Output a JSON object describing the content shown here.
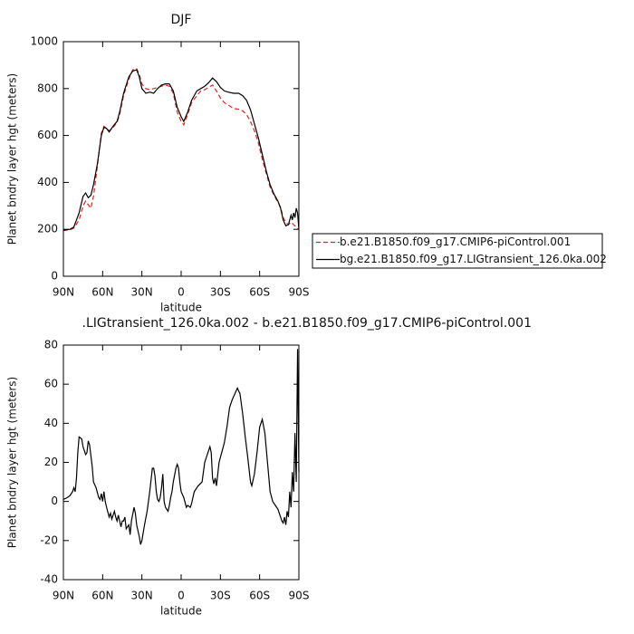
{
  "chart_data": [
    {
      "type": "line",
      "title": "DJF",
      "ylabel": "Planet bndry layer hgt (meters)",
      "xlabel": "latitude",
      "x": [
        90,
        85,
        82,
        78,
        75,
        73,
        71,
        69,
        67,
        64,
        61,
        59,
        57,
        55,
        52,
        49,
        47,
        44,
        40,
        37,
        34,
        32,
        30,
        27,
        24,
        21,
        18,
        15,
        12,
        9,
        6,
        3,
        0,
        -2,
        -5,
        -8,
        -12,
        -15,
        -18,
        -21,
        -24,
        -27,
        -30,
        -33,
        -36,
        -40,
        -44,
        -47,
        -50,
        -53,
        -56,
        -59,
        -62,
        -65,
        -68,
        -71,
        -74,
        -76,
        -78,
        -80,
        -82,
        -84,
        -85,
        -86,
        -87,
        -88,
        -89,
        -90
      ],
      "series": [
        {
          "name": "b.e21.B1850.f09_g17.CMIP6-piControl.001",
          "color": "#e8201c",
          "linestyle": "dashed",
          "values": [
            195,
            198,
            205,
            240,
            300,
            320,
            305,
            290,
            340,
            470,
            610,
            640,
            630,
            620,
            635,
            655,
            690,
            770,
            840,
            880,
            885,
            860,
            820,
            800,
            795,
            800,
            805,
            810,
            815,
            810,
            780,
            700,
            660,
            645,
            690,
            740,
            770,
            790,
            795,
            805,
            815,
            790,
            760,
            740,
            730,
            715,
            712,
            705,
            690,
            660,
            620,
            570,
            500,
            440,
            380,
            345,
            315,
            295,
            250,
            230,
            220,
            230,
            225,
            220,
            215,
            210,
            205,
            200
          ]
        },
        {
          "name": "bg.e21.B1850.f09_g17.LIGtransient_126.0ka.002",
          "color": "#000000",
          "linestyle": "solid",
          "values": [
            197,
            200,
            210,
            270,
            340,
            355,
            335,
            345,
            390,
            480,
            600,
            635,
            630,
            615,
            640,
            660,
            700,
            780,
            850,
            875,
            880,
            850,
            800,
            780,
            785,
            780,
            800,
            815,
            820,
            820,
            790,
            720,
            680,
            660,
            700,
            750,
            790,
            800,
            810,
            825,
            845,
            830,
            805,
            790,
            785,
            780,
            780,
            770,
            750,
            710,
            650,
            590,
            520,
            450,
            390,
            350,
            320,
            290,
            240,
            215,
            220,
            260,
            240,
            270,
            250,
            290,
            270,
            200
          ]
        }
      ],
      "xlim": [
        90,
        -90
      ],
      "xticks": [
        {
          "value": 90,
          "label": "90N"
        },
        {
          "value": 60,
          "label": "60N"
        },
        {
          "value": 30,
          "label": "30N"
        },
        0,
        {
          "value": -30,
          "label": "30S"
        },
        {
          "value": -60,
          "label": "60S"
        },
        {
          "value": -90,
          "label": "90S"
        }
      ],
      "ylim": [
        0,
        1000
      ],
      "yticks": [
        0,
        200,
        400,
        600,
        800,
        1000
      ],
      "legend": "right"
    },
    {
      "type": "line",
      "title": ".LIGtransient_126.0ka.002 - b.e21.B1850.f09_g17.CMIP6-piControl.001",
      "ylabel": "Planet bndry layer hgt (meters)",
      "xlabel": "latitude",
      "x": [
        90,
        87,
        85,
        83,
        82,
        81,
        80,
        79,
        78,
        76,
        75,
        73,
        72,
        71,
        70,
        68,
        67,
        65,
        63,
        62,
        61,
        60,
        59,
        58,
        57,
        55,
        54,
        53,
        51,
        50,
        49,
        48,
        46,
        45,
        44,
        43,
        42,
        40,
        39,
        38,
        36,
        35,
        34,
        32,
        31,
        30,
        28,
        26,
        25,
        24,
        22,
        21,
        20,
        19,
        18,
        17,
        16,
        15,
        14,
        13,
        12,
        10,
        9,
        8,
        7,
        6,
        4,
        3,
        2,
        1,
        0,
        -2,
        -4,
        -5,
        -7,
        -8,
        -10,
        -13,
        -16,
        -18,
        -20,
        -22,
        -23,
        -24,
        -25,
        -26,
        -27,
        -28,
        -29,
        -31,
        -33,
        -35,
        -37,
        -39,
        -41,
        -43,
        -45,
        -47,
        -49,
        -51,
        -53,
        -54,
        -56,
        -58,
        -60,
        -62,
        -64,
        -66,
        -68,
        -70,
        -72,
        -74,
        -76,
        -77,
        -78,
        -79,
        -80,
        -81,
        -82,
        -83,
        -84,
        -85,
        -86,
        -87,
        -88,
        -89,
        -90
      ],
      "values": [
        1,
        2,
        3,
        5,
        7,
        5,
        12,
        25,
        33,
        32,
        28,
        24,
        25,
        31,
        29,
        18,
        10,
        7,
        2,
        1,
        4,
        0,
        5,
        0,
        -3,
        -8,
        -6,
        -9,
        -5,
        -8,
        -10,
        -7,
        -13,
        -10,
        -10,
        -8,
        -14,
        -12,
        -17,
        -10,
        -3,
        -6,
        -12,
        -18,
        -22,
        -20,
        -12,
        -5,
        0,
        5,
        17,
        17,
        13,
        5,
        1,
        0,
        2,
        7,
        14,
        0,
        -3,
        -5,
        -2,
        2,
        5,
        10,
        17,
        19,
        17,
        10,
        5,
        2,
        -3,
        -2,
        -3,
        -1,
        5,
        8,
        10,
        20,
        24,
        28,
        25,
        12,
        9,
        12,
        8,
        14,
        20,
        25,
        30,
        38,
        48,
        52,
        55,
        58,
        55,
        45,
        33,
        22,
        10,
        8,
        14,
        25,
        38,
        42,
        35,
        20,
        5,
        0,
        -2,
        -4,
        -8,
        -10,
        -11,
        -8,
        -12,
        -5,
        -8,
        5,
        -3,
        15,
        5,
        35,
        10,
        78,
        15
      ],
      "color": "#000000",
      "xlim": [
        90,
        -90
      ],
      "xticks": [
        {
          "value": 90,
          "label": "90N"
        },
        {
          "value": 60,
          "label": "60N"
        },
        {
          "value": 30,
          "label": "30N"
        },
        0,
        {
          "value": -30,
          "label": "30S"
        },
        {
          "value": -60,
          "label": "60S"
        },
        {
          "value": -90,
          "label": "90S"
        }
      ],
      "ylim": [
        -40,
        80
      ],
      "yticks": [
        -40,
        -20,
        0,
        20,
        40,
        60,
        80
      ]
    }
  ]
}
